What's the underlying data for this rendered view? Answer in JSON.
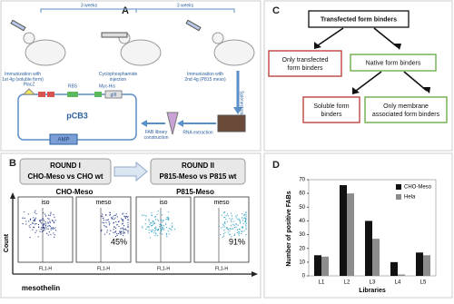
{
  "panel_a": {
    "label": "A",
    "interval_1": "3 weeks",
    "interval_2": "3 weeks",
    "step_1": [
      "Immunization with",
      "1st 4g (soluble form)"
    ],
    "step_2": [
      "Cyclophosphamide",
      "injection"
    ],
    "step_3": [
      "Immunization with",
      "2nd 4g (P815 meso)"
    ],
    "step_4": "Splenectomy",
    "step_5": "RNA extraction",
    "step_6": [
      "FAB library",
      "construction"
    ],
    "vector": "pCB3",
    "resistance": "AMP",
    "promoter": "PlacZ",
    "rbs": "RBS",
    "tag": "Myc-His",
    "gene": "gIII"
  },
  "panel_b": {
    "label": "B",
    "round_1": "ROUND I",
    "round_1_text": "CHO-Meso vs CHO wt",
    "round_2": "ROUND II",
    "round_2_text": "P815-Meso vs P815 wt",
    "group_1": "CHO-Meso",
    "group_2": "P815-Meso",
    "plots": [
      {
        "label": "iso",
        "axis": "FL1-H"
      },
      {
        "label": "meso",
        "axis": "FL1-H",
        "percent": "45%"
      },
      {
        "label": "iso",
        "axis": "FL1-H"
      },
      {
        "label": "meso",
        "axis": "FL1-H",
        "percent": "91%"
      }
    ],
    "y_label": "Count",
    "x_label": "mesothelin"
  },
  "panel_c": {
    "label": "C",
    "root": "Transfected form binders",
    "left": [
      "Only transfected",
      "form binders"
    ],
    "right": "Native form binders",
    "right_left": [
      "Soluble form",
      "binders"
    ],
    "right_right": [
      "Only membrane",
      "associated form binders"
    ]
  },
  "chart_data": {
    "type": "bar",
    "label": "D",
    "x_label": "Libraries",
    "y_label": "Number of positive FABs",
    "categories": [
      "L1",
      "L2",
      "L3",
      "L4",
      "L5"
    ],
    "series": [
      {
        "name": "CHO-Meso",
        "color": "#111111",
        "values": [
          15,
          66,
          40,
          10,
          17
        ]
      },
      {
        "name": "Hela",
        "color": "#8c8c8c",
        "values": [
          14,
          60,
          27,
          1,
          15
        ]
      }
    ],
    "ylim": [
      0,
      70
    ],
    "yticks": [
      0,
      10,
      20,
      30,
      40,
      50,
      60,
      70
    ],
    "grid": false,
    "legend": "top-right"
  }
}
